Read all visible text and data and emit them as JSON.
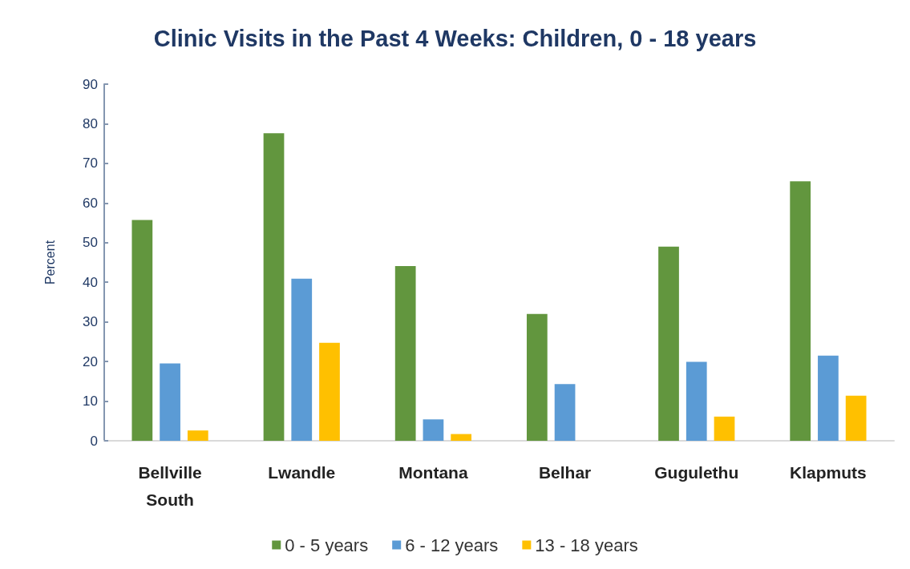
{
  "chart_data": {
    "type": "bar",
    "title": "Clinic Visits in the Past 4 Weeks: Children, 0 - 18 years",
    "ylabel": "Percent",
    "categories": [
      "Bellville\nSouth",
      "Lwandle",
      "Montana",
      "Belhar",
      "Gugulethu",
      "Klapmuts"
    ],
    "series": [
      {
        "name": "0 - 5 years",
        "color": "#62963e",
        "values": [
          55.7,
          77.6,
          44.1,
          32.0,
          49.0,
          65.5
        ]
      },
      {
        "name": "6 - 12 years",
        "color": "#5b9bd5",
        "values": [
          19.5,
          40.9,
          5.4,
          14.3,
          19.9,
          21.5
        ]
      },
      {
        "name": "13 - 18 years",
        "color": "#ffc000",
        "values": [
          2.6,
          24.7,
          1.7,
          0,
          6.1,
          11.4
        ]
      }
    ],
    "ylim": [
      0,
      90
    ],
    "yticks": [
      0,
      10,
      20,
      30,
      40,
      50,
      60,
      70,
      80,
      90
    ],
    "grid": false,
    "legend": "bottom"
  }
}
